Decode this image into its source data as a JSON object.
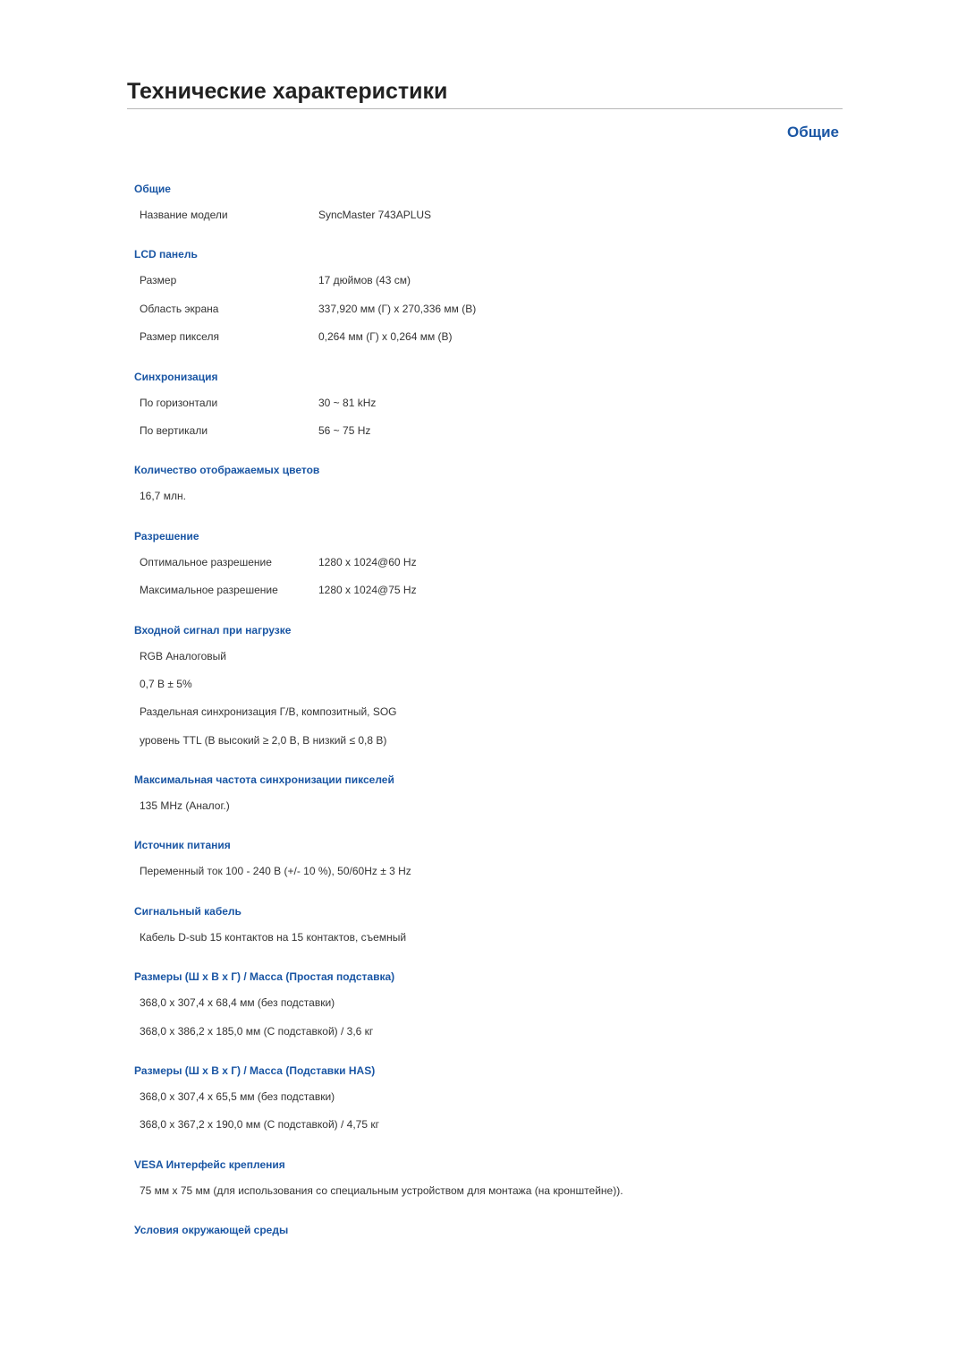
{
  "page": {
    "title": "Технические характеристики",
    "section_header": "Общие"
  },
  "colors": {
    "heading_blue": "#1a56a4",
    "text": "#333333",
    "rule": "#b8b8b8",
    "background": "#ffffff"
  },
  "sections": {
    "general": {
      "heading": "Общие",
      "model_label": "Название модели",
      "model_value": "SyncMaster 743APLUS"
    },
    "lcd": {
      "heading": "LCD панель",
      "size_label": "Размер",
      "size_value": "17 дюймов (43 см)",
      "area_label": "Область экрана",
      "area_value": "337,920 мм (Г) x 270,336 мм (B)",
      "pixel_label": "Размер пикселя",
      "pixel_value": "0,264 мм (Г) x 0,264 мм (B)"
    },
    "sync": {
      "heading": "Синхронизация",
      "horiz_label": "По горизонтали",
      "horiz_value": "30 ~ 81 kHz",
      "vert_label": "По вертикали",
      "vert_value": "56 ~ 75 Hz"
    },
    "colors_count": {
      "heading": "Количество отображаемых цветов",
      "value": "16,7 млн."
    },
    "resolution": {
      "heading": "Разрешение",
      "opt_label": "Оптимальное разрешение",
      "opt_value": "1280 x 1024@60 Hz",
      "max_label": "Максимальное разрешение",
      "max_value": "1280 x 1024@75 Hz"
    },
    "input_signal": {
      "heading": "Входной сигнал при нагрузке",
      "line1": "RGB Аналоговый",
      "line2": "0,7 B ± 5%",
      "line3": "Раздельная синхронизация Г/В, композитный, SOG",
      "line4": "уровень TTL (В высокий ≥ 2,0 В, В низкий ≤ 0,8 В)"
    },
    "pixel_clock": {
      "heading": "Максимальная частота синхронизации пикселей",
      "value": "135 MHz (Аналог.)"
    },
    "power": {
      "heading": "Источник питания",
      "value": "Переменный ток 100 - 240 В (+/- 10 %), 50/60Hz ± 3 Hz"
    },
    "cable": {
      "heading": "Сигнальный кабель",
      "value": "Кабель D-sub 15 контактов на 15 контактов, съемный"
    },
    "dims_simple": {
      "heading": "Размеры (Ш x В x Г) / Масса (Простая подставка)",
      "line1": "368,0 x 307,4 x 68,4 мм (без подставки)",
      "line2": "368,0 x 386,2 x 185,0 мм (С подставкой) / 3,6 кг"
    },
    "dims_has": {
      "heading": "Размеры (Ш x В x Г) / Масса (Подставки HAS)",
      "line1": "368,0 x 307,4 x 65,5 мм (без подставки)",
      "line2": "368,0 x 367,2 x 190,0 мм (С подставкой) / 4,75 кг"
    },
    "vesa": {
      "heading": "VESA Интерфейс крепления",
      "value": "75 мм x 75 мм (для использования со специальным устройством для монтажа (на кронштейне))."
    },
    "env": {
      "heading": "Условия окружающей среды"
    }
  }
}
